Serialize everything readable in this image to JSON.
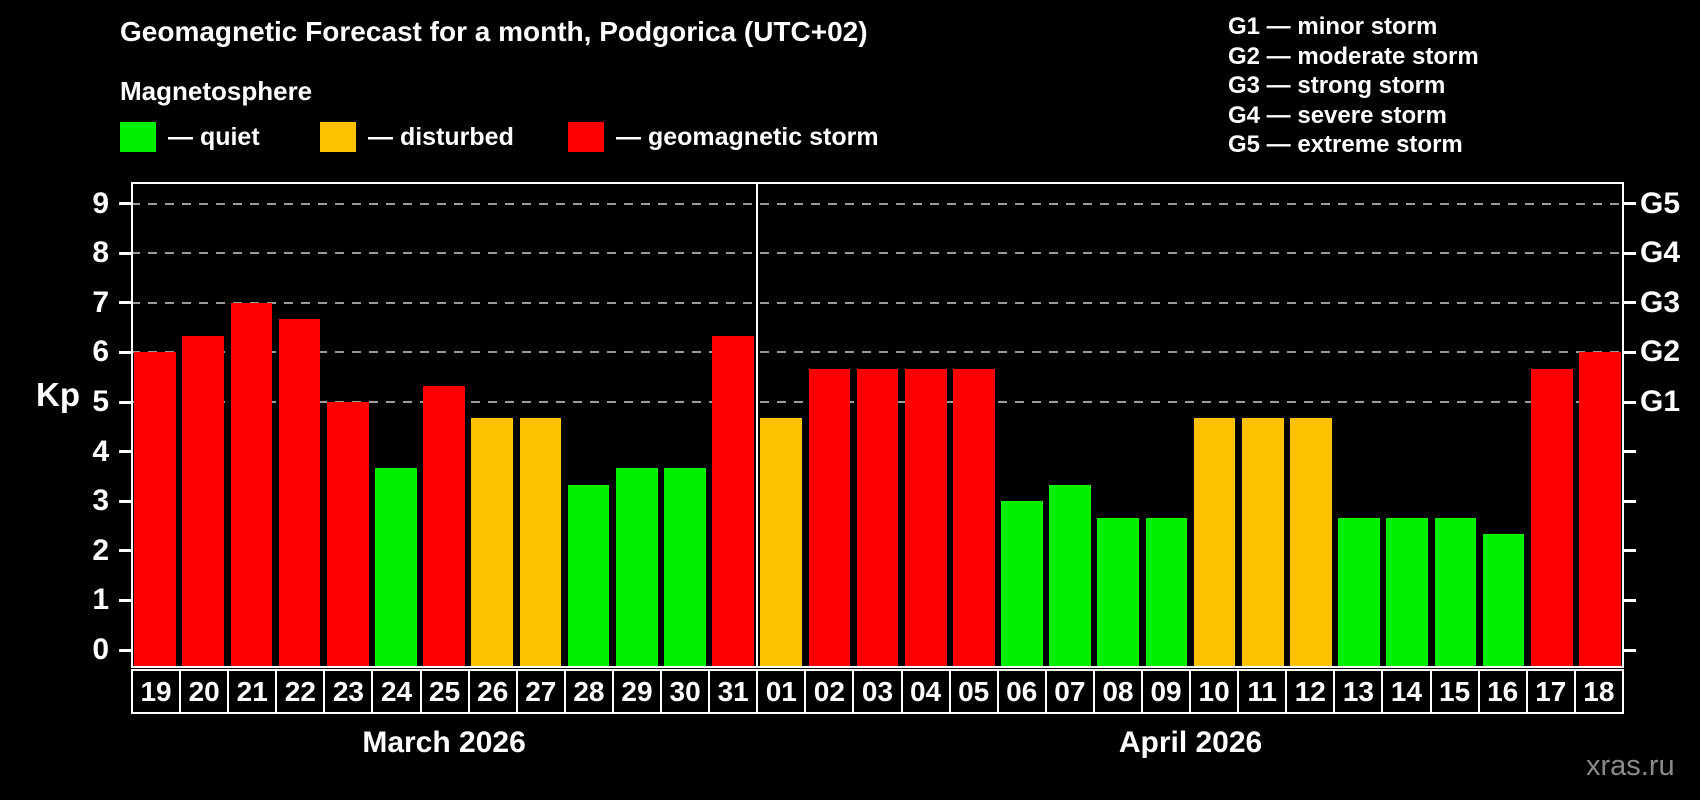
{
  "header": {
    "title": "Geomagnetic Forecast for a month, Podgorica (UTC+02)",
    "subtitle": "Magnetosphere"
  },
  "magnetosphere_legend": [
    {
      "status": "quiet",
      "label": "— quiet"
    },
    {
      "status": "disturbed",
      "label": "— disturbed"
    },
    {
      "status": "storm",
      "label": "— geomagnetic storm"
    }
  ],
  "g_scale_legend": [
    "G1 — minor storm",
    "G2 — moderate storm",
    "G3 — strong storm",
    "G4 — severe storm",
    "G5 — extreme storm"
  ],
  "colors": {
    "quiet": "#00ee00",
    "disturbed": "#ffc200",
    "storm": "#ff0000",
    "grid": "#9a9a9a",
    "frame": "#ffffff",
    "watermark": "#8a8a8a"
  },
  "chart_data": {
    "type": "bar",
    "ylabel": "Kp",
    "ylim": [
      0,
      9
    ],
    "yticks": [
      0,
      1,
      2,
      3,
      4,
      5,
      6,
      7,
      8,
      9
    ],
    "gridlines": [
      5,
      6,
      7,
      8,
      9
    ],
    "grid_style": "dashed",
    "legend_position": "top",
    "right_axis_labels": [
      {
        "kp": 5,
        "label": "G1"
      },
      {
        "kp": 6,
        "label": "G2"
      },
      {
        "kp": 7,
        "label": "G3"
      },
      {
        "kp": 8,
        "label": "G4"
      },
      {
        "kp": 9,
        "label": "G5"
      }
    ],
    "sections": [
      {
        "month_label": "March 2026",
        "days": [
          {
            "date": "19",
            "kp": 6.0,
            "status": "storm"
          },
          {
            "date": "20",
            "kp": 6.33,
            "status": "storm"
          },
          {
            "date": "21",
            "kp": 7.0,
            "status": "storm"
          },
          {
            "date": "22",
            "kp": 6.67,
            "status": "storm"
          },
          {
            "date": "23",
            "kp": 5.0,
            "status": "storm"
          },
          {
            "date": "24",
            "kp": 3.67,
            "status": "quiet"
          },
          {
            "date": "25",
            "kp": 5.33,
            "status": "storm"
          },
          {
            "date": "26",
            "kp": 4.67,
            "status": "disturbed"
          },
          {
            "date": "27",
            "kp": 4.67,
            "status": "disturbed"
          },
          {
            "date": "28",
            "kp": 3.33,
            "status": "quiet"
          },
          {
            "date": "29",
            "kp": 3.67,
            "status": "quiet"
          },
          {
            "date": "30",
            "kp": 3.67,
            "status": "quiet"
          },
          {
            "date": "31",
            "kp": 6.33,
            "status": "storm"
          }
        ]
      },
      {
        "month_label": "April 2026",
        "days": [
          {
            "date": "01",
            "kp": 4.67,
            "status": "disturbed"
          },
          {
            "date": "02",
            "kp": 5.67,
            "status": "storm"
          },
          {
            "date": "03",
            "kp": 5.67,
            "status": "storm"
          },
          {
            "date": "04",
            "kp": 5.67,
            "status": "storm"
          },
          {
            "date": "05",
            "kp": 5.67,
            "status": "storm"
          },
          {
            "date": "06",
            "kp": 3.0,
            "status": "quiet"
          },
          {
            "date": "07",
            "kp": 3.33,
            "status": "quiet"
          },
          {
            "date": "08",
            "kp": 2.67,
            "status": "quiet"
          },
          {
            "date": "09",
            "kp": 2.67,
            "status": "quiet"
          },
          {
            "date": "10",
            "kp": 4.67,
            "status": "disturbed"
          },
          {
            "date": "11",
            "kp": 4.67,
            "status": "disturbed"
          },
          {
            "date": "12",
            "kp": 4.67,
            "status": "disturbed"
          },
          {
            "date": "13",
            "kp": 2.67,
            "status": "quiet"
          },
          {
            "date": "14",
            "kp": 2.67,
            "status": "quiet"
          },
          {
            "date": "15",
            "kp": 2.67,
            "status": "quiet"
          },
          {
            "date": "16",
            "kp": 2.33,
            "status": "quiet"
          },
          {
            "date": "17",
            "kp": 5.67,
            "status": "storm"
          },
          {
            "date": "18",
            "kp": 6.0,
            "status": "storm"
          }
        ]
      }
    ]
  },
  "watermark": "xras.ru"
}
